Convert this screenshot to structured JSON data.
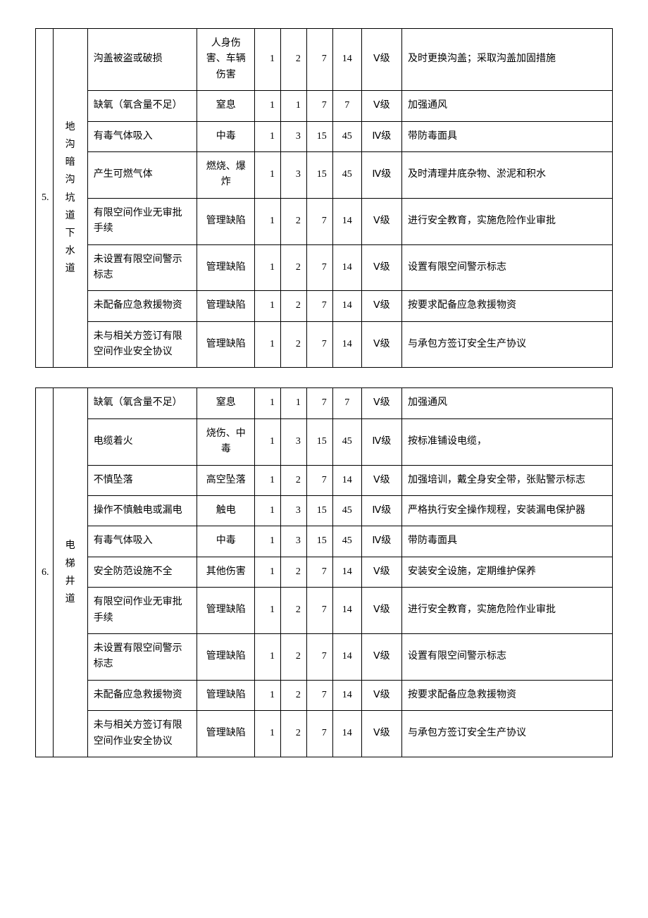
{
  "layout": {
    "page_bg": "#ffffff",
    "border_color": "#000000",
    "font_family": "SimSun",
    "font_size_pt": 14
  },
  "tables": [
    {
      "index": "5.",
      "category": "地沟暗沟坑道下水道",
      "rows": [
        {
          "hazard": "沟盖被盗或破损",
          "consequence": "人身伤害、车辆伤害",
          "n1": "1",
          "n2": "2",
          "n3": "7",
          "n4": "14",
          "level": "Ⅴ级",
          "measure": "及时更换沟盖；采取沟盖加固措施"
        },
        {
          "hazard": "缺氧（氧含量不足）",
          "consequence": "窒息",
          "n1": "1",
          "n2": "1",
          "n3": "7",
          "n4": "7",
          "level": "Ⅴ级",
          "measure": "加强通风"
        },
        {
          "hazard": "有毒气体吸入",
          "consequence": "中毒",
          "n1": "1",
          "n2": "3",
          "n3": "15",
          "n4": "45",
          "level": "Ⅳ级",
          "measure": "带防毒面具"
        },
        {
          "hazard": "产生可燃气体",
          "consequence": "燃烧、爆炸",
          "n1": "1",
          "n2": "3",
          "n3": "15",
          "n4": "45",
          "level": "Ⅳ级",
          "measure": "及时清理井底杂物、淤泥和积水"
        },
        {
          "hazard": "有限空间作业无审批手续",
          "consequence": "管理缺陷",
          "n1": "1",
          "n2": "2",
          "n3": "7",
          "n4": "14",
          "level": "Ⅴ级",
          "measure": "进行安全教育，实施危险作业审批"
        },
        {
          "hazard": "未设置有限空间警示标志",
          "consequence": "管理缺陷",
          "n1": "1",
          "n2": "2",
          "n3": "7",
          "n4": "14",
          "level": "Ⅴ级",
          "measure": "设置有限空间警示标志"
        },
        {
          "hazard": "未配备应急救援物资",
          "consequence": "管理缺陷",
          "n1": "1",
          "n2": "2",
          "n3": "7",
          "n4": "14",
          "level": "Ⅴ级",
          "measure": "按要求配备应急救援物资"
        },
        {
          "hazard": "未与相关方签订有限空间作业安全协议",
          "consequence": "管理缺陷",
          "n1": "1",
          "n2": "2",
          "n3": "7",
          "n4": "14",
          "level": "Ⅴ级",
          "measure": "与承包方签订安全生产协议"
        }
      ]
    },
    {
      "index": "6.",
      "category": "电梯井道",
      "rows": [
        {
          "hazard": "缺氧（氧含量不足）",
          "consequence": "窒息",
          "n1": "1",
          "n2": "1",
          "n3": "7",
          "n4": "7",
          "level": "Ⅴ级",
          "measure": "加强通风"
        },
        {
          "hazard": "电缆着火",
          "consequence": "烧伤、中毒",
          "n1": "1",
          "n2": "3",
          "n3": "15",
          "n4": "45",
          "level": "Ⅳ级",
          "measure": "按标准铺设电缆，"
        },
        {
          "hazard": "不慎坠落",
          "consequence": "高空坠落",
          "n1": "1",
          "n2": "2",
          "n3": "7",
          "n4": "14",
          "level": "Ⅴ级",
          "measure": "加强培训，戴全身安全带，张贴警示标志"
        },
        {
          "hazard": "操作不慎触电或漏电",
          "consequence": "触电",
          "n1": "1",
          "n2": "3",
          "n3": "15",
          "n4": "45",
          "level": "Ⅳ级",
          "measure": "严格执行安全操作规程，安装漏电保护器"
        },
        {
          "hazard": "有毒气体吸入",
          "consequence": "中毒",
          "n1": "1",
          "n2": "3",
          "n3": "15",
          "n4": "45",
          "level": "Ⅳ级",
          "measure": "带防毒面具"
        },
        {
          "hazard": "安全防范设施不全",
          "consequence": "其他伤害",
          "n1": "1",
          "n2": "2",
          "n3": "7",
          "n4": "14",
          "level": "Ⅴ级",
          "measure": "安装安全设施，定期维护保养"
        },
        {
          "hazard": "有限空间作业无审批手续",
          "consequence": "管理缺陷",
          "n1": "1",
          "n2": "2",
          "n3": "7",
          "n4": "14",
          "level": "Ⅴ级",
          "measure": "进行安全教育，实施危险作业审批"
        },
        {
          "hazard": "未设置有限空间警示标志",
          "consequence": "管理缺陷",
          "n1": "1",
          "n2": "2",
          "n3": "7",
          "n4": "14",
          "level": "Ⅴ级",
          "measure": "设置有限空间警示标志"
        },
        {
          "hazard": "未配备应急救援物资",
          "consequence": "管理缺陷",
          "n1": "1",
          "n2": "2",
          "n3": "7",
          "n4": "14",
          "level": "Ⅴ级",
          "measure": "按要求配备应急救援物资"
        },
        {
          "hazard": "未与相关方签订有限空间作业安全协议",
          "consequence": "管理缺陷",
          "n1": "1",
          "n2": "2",
          "n3": "7",
          "n4": "14",
          "level": "Ⅴ级",
          "measure": "与承包方签订安全生产协议"
        }
      ]
    }
  ]
}
